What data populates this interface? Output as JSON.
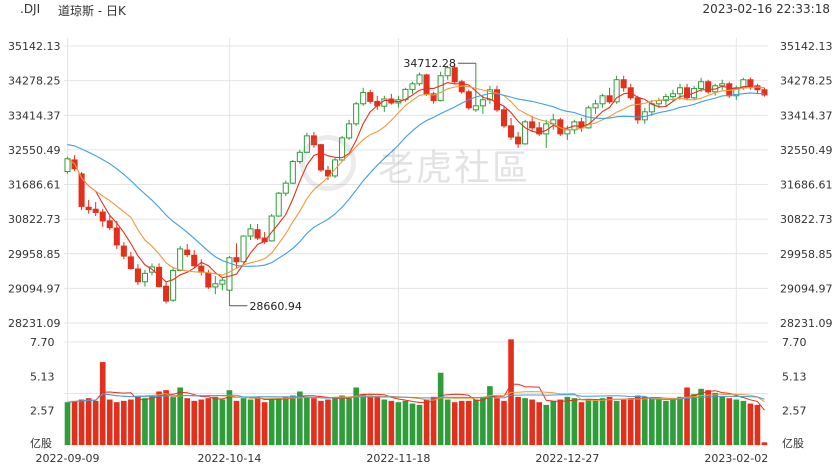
{
  "header": {
    "symbol": ".DJI",
    "name": "道琼斯 - 日K",
    "datetime": "2023-02-16 22:33:18"
  },
  "watermark": {
    "text": "老虎社區"
  },
  "colors": {
    "up": "#2e9d3a",
    "down": "#e3301c",
    "ma_short": "#e3301c",
    "ma_mid": "#f09a3e",
    "ma_long": "#3f9fe0",
    "vol_ma_a": "#e3301c",
    "vol_ma_b": "#f09a3e",
    "vol_ma_c": "#3f9fe0",
    "grid": "#e4e4e4",
    "axis_text": "#333333"
  },
  "chart_data": [
    {
      "type": "candlestick",
      "title": "",
      "y_ticks": [
        "35142.13",
        "34278.25",
        "33414.37",
        "32550.49",
        "31686.61",
        "30822.73",
        "29958.85",
        "29094.97",
        "28231.09"
      ],
      "ylim": [
        28231.09,
        35142.13
      ],
      "grid": true,
      "annotations": [
        {
          "label": "34712.28",
          "value": 34712.28,
          "index": 58,
          "kind": "high"
        },
        {
          "label": "28660.94",
          "value": 28660.94,
          "index": 23,
          "kind": "low"
        }
      ],
      "x_ticks": [
        "2022-09-09",
        "2022-10-14",
        "2022-11-18",
        "2022-12-27",
        "2023-02-02"
      ],
      "x_tick_index": [
        0,
        23,
        47,
        71,
        95
      ],
      "series_ohlc": [
        {
          "o": 32010,
          "h": 32380,
          "l": 31960,
          "c": 32330
        },
        {
          "o": 32300,
          "h": 32420,
          "l": 32020,
          "c": 32080
        },
        {
          "o": 31950,
          "h": 32000,
          "l": 31050,
          "c": 31140
        },
        {
          "o": 31120,
          "h": 31300,
          "l": 30960,
          "c": 31060
        },
        {
          "o": 31070,
          "h": 31250,
          "l": 30900,
          "c": 30990
        },
        {
          "o": 31000,
          "h": 31080,
          "l": 30630,
          "c": 30780
        },
        {
          "o": 30780,
          "h": 30900,
          "l": 30550,
          "c": 30610
        },
        {
          "o": 30600,
          "h": 30780,
          "l": 30080,
          "c": 30180
        },
        {
          "o": 30150,
          "h": 30250,
          "l": 29820,
          "c": 29900
        },
        {
          "o": 29880,
          "h": 30000,
          "l": 29560,
          "c": 29590
        },
        {
          "o": 29580,
          "h": 29700,
          "l": 29180,
          "c": 29260
        },
        {
          "o": 29260,
          "h": 29560,
          "l": 29140,
          "c": 29470
        },
        {
          "o": 29500,
          "h": 29720,
          "l": 29420,
          "c": 29630
        },
        {
          "o": 29620,
          "h": 29720,
          "l": 29120,
          "c": 29140
        },
        {
          "o": 29150,
          "h": 29260,
          "l": 28720,
          "c": 28780
        },
        {
          "o": 28800,
          "h": 29600,
          "l": 28760,
          "c": 29540
        },
        {
          "o": 29540,
          "h": 30150,
          "l": 29520,
          "c": 30080
        },
        {
          "o": 30050,
          "h": 30200,
          "l": 29880,
          "c": 29940
        },
        {
          "o": 29920,
          "h": 30050,
          "l": 29600,
          "c": 29660
        },
        {
          "o": 29650,
          "h": 29820,
          "l": 29420,
          "c": 29500
        },
        {
          "o": 29480,
          "h": 29560,
          "l": 29080,
          "c": 29130
        },
        {
          "o": 29130,
          "h": 29400,
          "l": 28950,
          "c": 29210
        },
        {
          "o": 29200,
          "h": 29360,
          "l": 29050,
          "c": 29300
        },
        {
          "o": 29050,
          "h": 29900,
          "l": 28660.94,
          "c": 29860
        },
        {
          "o": 29860,
          "h": 30220,
          "l": 29600,
          "c": 29760
        },
        {
          "o": 29760,
          "h": 30420,
          "l": 29740,
          "c": 30400
        },
        {
          "o": 30400,
          "h": 30700,
          "l": 30300,
          "c": 30580
        },
        {
          "o": 30560,
          "h": 30700,
          "l": 30300,
          "c": 30350
        },
        {
          "o": 30350,
          "h": 30500,
          "l": 30200,
          "c": 30260
        },
        {
          "o": 30280,
          "h": 30950,
          "l": 30260,
          "c": 30900
        },
        {
          "o": 30900,
          "h": 31500,
          "l": 30880,
          "c": 31470
        },
        {
          "o": 31470,
          "h": 31780,
          "l": 31400,
          "c": 31720
        },
        {
          "o": 31720,
          "h": 32300,
          "l": 31700,
          "c": 32260
        },
        {
          "o": 32260,
          "h": 32550,
          "l": 32200,
          "c": 32490
        },
        {
          "o": 32490,
          "h": 32980,
          "l": 32470,
          "c": 32900
        },
        {
          "o": 32900,
          "h": 33000,
          "l": 32600,
          "c": 32680
        },
        {
          "o": 32680,
          "h": 32700,
          "l": 32000,
          "c": 32050
        },
        {
          "o": 32040,
          "h": 32150,
          "l": 31800,
          "c": 31900
        },
        {
          "o": 31900,
          "h": 32350,
          "l": 31850,
          "c": 32300
        },
        {
          "o": 32300,
          "h": 32900,
          "l": 32250,
          "c": 32850
        },
        {
          "o": 32850,
          "h": 33300,
          "l": 32800,
          "c": 33200
        },
        {
          "o": 33200,
          "h": 33750,
          "l": 33150,
          "c": 33700
        },
        {
          "o": 33700,
          "h": 34100,
          "l": 33650,
          "c": 33980
        },
        {
          "o": 33980,
          "h": 34050,
          "l": 33700,
          "c": 33760
        },
        {
          "o": 33760,
          "h": 33900,
          "l": 33550,
          "c": 33650
        },
        {
          "o": 33640,
          "h": 33900,
          "l": 33500,
          "c": 33820
        },
        {
          "o": 33820,
          "h": 33950,
          "l": 33680,
          "c": 33720
        },
        {
          "o": 33720,
          "h": 33900,
          "l": 33600,
          "c": 33800
        },
        {
          "o": 33800,
          "h": 34100,
          "l": 33750,
          "c": 34060
        },
        {
          "o": 34060,
          "h": 34250,
          "l": 33950,
          "c": 34200
        },
        {
          "o": 34200,
          "h": 34480,
          "l": 34150,
          "c": 34420
        },
        {
          "o": 34420,
          "h": 34450,
          "l": 33900,
          "c": 33950
        },
        {
          "o": 33950,
          "h": 34000,
          "l": 33700,
          "c": 33780
        },
        {
          "o": 33780,
          "h": 34500,
          "l": 33760,
          "c": 34400
        },
        {
          "o": 34400,
          "h": 34650,
          "l": 34300,
          "c": 34600
        },
        {
          "o": 34600,
          "h": 34700,
          "l": 34200,
          "c": 34250
        },
        {
          "o": 34250,
          "h": 34300,
          "l": 33950,
          "c": 34000
        },
        {
          "o": 34000,
          "h": 34050,
          "l": 33550,
          "c": 33600
        },
        {
          "o": 33550,
          "h": 34712.28,
          "l": 33500,
          "c": 33650
        },
        {
          "o": 33650,
          "h": 33900,
          "l": 33450,
          "c": 33800
        },
        {
          "o": 33800,
          "h": 34150,
          "l": 33700,
          "c": 34050
        },
        {
          "o": 34050,
          "h": 34150,
          "l": 33500,
          "c": 33550
        },
        {
          "o": 33550,
          "h": 33650,
          "l": 33100,
          "c": 33150
        },
        {
          "o": 33150,
          "h": 33350,
          "l": 32800,
          "c": 32870
        },
        {
          "o": 32870,
          "h": 33000,
          "l": 32600,
          "c": 32700
        },
        {
          "o": 32700,
          "h": 33300,
          "l": 32680,
          "c": 33250
        },
        {
          "o": 33250,
          "h": 33400,
          "l": 33000,
          "c": 33100
        },
        {
          "o": 33100,
          "h": 33250,
          "l": 32900,
          "c": 32950
        },
        {
          "o": 32950,
          "h": 33300,
          "l": 32600,
          "c": 33200
        },
        {
          "o": 33200,
          "h": 33450,
          "l": 33050,
          "c": 33300
        },
        {
          "o": 33300,
          "h": 33350,
          "l": 32900,
          "c": 32950
        },
        {
          "o": 32950,
          "h": 33150,
          "l": 32800,
          "c": 33050
        },
        {
          "o": 33050,
          "h": 33300,
          "l": 32950,
          "c": 33250
        },
        {
          "o": 33250,
          "h": 33350,
          "l": 33000,
          "c": 33100
        },
        {
          "o": 33100,
          "h": 33650,
          "l": 33080,
          "c": 33600
        },
        {
          "o": 33600,
          "h": 33800,
          "l": 33450,
          "c": 33700
        },
        {
          "o": 33700,
          "h": 33950,
          "l": 33600,
          "c": 33900
        },
        {
          "o": 33900,
          "h": 34100,
          "l": 33700,
          "c": 33750
        },
        {
          "o": 33750,
          "h": 34400,
          "l": 33700,
          "c": 34300
        },
        {
          "o": 34300,
          "h": 34400,
          "l": 34000,
          "c": 34100
        },
        {
          "o": 34100,
          "h": 34200,
          "l": 33800,
          "c": 33850
        },
        {
          "o": 33850,
          "h": 33900,
          "l": 33200,
          "c": 33300
        },
        {
          "o": 33300,
          "h": 33600,
          "l": 33200,
          "c": 33500
        },
        {
          "o": 33500,
          "h": 33800,
          "l": 33400,
          "c": 33700
        },
        {
          "o": 33700,
          "h": 33850,
          "l": 33600,
          "c": 33780
        },
        {
          "o": 33780,
          "h": 33950,
          "l": 33650,
          "c": 33880
        },
        {
          "o": 33880,
          "h": 34050,
          "l": 33750,
          "c": 33950
        },
        {
          "o": 33950,
          "h": 34200,
          "l": 33800,
          "c": 34100
        },
        {
          "o": 34100,
          "h": 34200,
          "l": 33800,
          "c": 33850
        },
        {
          "o": 33850,
          "h": 34150,
          "l": 33800,
          "c": 34080
        },
        {
          "o": 34080,
          "h": 34350,
          "l": 34000,
          "c": 34250
        },
        {
          "o": 34250,
          "h": 34300,
          "l": 33950,
          "c": 34000
        },
        {
          "o": 34000,
          "h": 34200,
          "l": 33900,
          "c": 34150
        },
        {
          "o": 34150,
          "h": 34300,
          "l": 34050,
          "c": 34200
        },
        {
          "o": 34200,
          "h": 34250,
          "l": 33850,
          "c": 33900
        },
        {
          "o": 33900,
          "h": 34150,
          "l": 33800,
          "c": 34100
        },
        {
          "o": 34100,
          "h": 34350,
          "l": 34050,
          "c": 34300
        },
        {
          "o": 34300,
          "h": 34350,
          "l": 34050,
          "c": 34150
        },
        {
          "o": 34150,
          "h": 34200,
          "l": 33950,
          "c": 34050
        },
        {
          "o": 34050,
          "h": 34100,
          "l": 33880,
          "c": 33920
        }
      ]
    },
    {
      "type": "bar",
      "title": "",
      "y_ticks": [
        "7.70",
        "5.13",
        "2.57",
        "亿股"
      ],
      "ylim": [
        0,
        7.7
      ],
      "units": "亿股",
      "volumes": [
        3.2,
        3.3,
        3.4,
        3.5,
        3.3,
        6.2,
        3.4,
        3.2,
        3.3,
        3.4,
        3.6,
        3.5,
        3.7,
        4.0,
        4.1,
        3.6,
        4.3,
        3.5,
        3.3,
        3.4,
        3.5,
        3.6,
        3.4,
        4.1,
        3.3,
        3.5,
        3.4,
        3.6,
        3.2,
        3.4,
        3.5,
        3.6,
        3.7,
        4.0,
        3.6,
        3.5,
        3.3,
        3.4,
        3.6,
        3.7,
        3.5,
        4.3,
        3.8,
        3.7,
        3.6,
        3.4,
        3.3,
        3.2,
        3.3,
        3.1,
        3.0,
        3.4,
        3.6,
        5.4,
        3.4,
        3.2,
        3.3,
        3.3,
        3.4,
        3.6,
        4.4,
        3.5,
        3.3,
        7.9,
        3.6,
        3.5,
        3.4,
        3.2,
        3.0,
        3.3,
        3.4,
        3.6,
        3.5,
        3.2,
        3.4,
        3.3,
        3.5,
        3.6,
        3.3,
        3.4,
        3.5,
        3.7,
        3.6,
        3.5,
        3.4,
        3.3,
        3.5,
        3.6,
        4.3,
        3.8,
        4.2,
        4.1,
        3.9,
        3.6,
        3.5,
        3.4,
        3.3,
        3.1,
        3.0,
        0.2
      ]
    }
  ]
}
